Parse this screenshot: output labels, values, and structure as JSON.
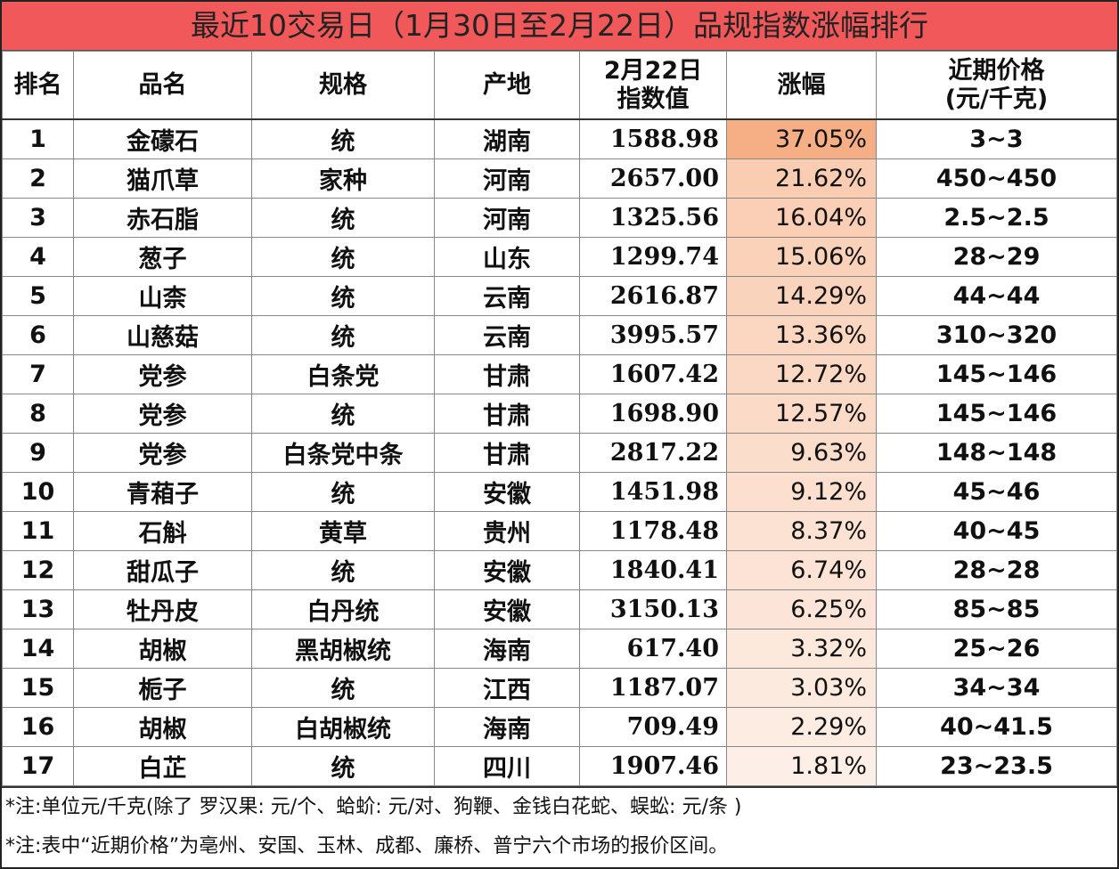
{
  "title": "最近10交易日（1月30日至2月22日）品规指数涨幅排行",
  "table": {
    "header": [
      "排名",
      "品名",
      "规格",
      "产地",
      "2月22日\n指数值",
      "涨幅",
      "近期价格\n(元/千克)"
    ],
    "rows": [
      [
        "1",
        "金礞石",
        "统",
        "湖南",
        "1588.98",
        "37.05%",
        "3~3"
      ],
      [
        "2",
        "猫爪草",
        "家种",
        "河南",
        "2657.00",
        "21.62%",
        "450~450"
      ],
      [
        "3",
        "赤石脂",
        "统",
        "河南",
        "1325.56",
        "16.04%",
        "2.5~2.5"
      ],
      [
        "4",
        "葱子",
        "统",
        "山东",
        "1299.74",
        "15.06%",
        "28~29"
      ],
      [
        "5",
        "山柰",
        "统",
        "云南",
        "2616.87",
        "14.29%",
        "44~44"
      ],
      [
        "6",
        "山慈菇",
        "统",
        "云南",
        "3995.57",
        "13.36%",
        "310~320"
      ],
      [
        "7",
        "党参",
        "白条党",
        "甘肃",
        "1607.42",
        "12.72%",
        "145~146"
      ],
      [
        "8",
        "党参",
        "统",
        "甘肃",
        "1698.90",
        "12.57%",
        "145~146"
      ],
      [
        "9",
        "党参",
        "白条党中条",
        "甘肃",
        "2817.22",
        "9.63%",
        "148~148"
      ],
      [
        "10",
        "青葙子",
        "统",
        "安徽",
        "1451.98",
        "9.12%",
        "45~46"
      ],
      [
        "11",
        "石斛",
        "黄草",
        "贵州",
        "1178.48",
        "8.37%",
        "40~45"
      ],
      [
        "12",
        "甜瓜子",
        "统",
        "安徽",
        "1840.41",
        "6.74%",
        "28~28"
      ],
      [
        "13",
        "牡丹皮",
        "白丹统",
        "安徽",
        "3150.13",
        "6.25%",
        "85~85"
      ],
      [
        "14",
        "胡椒",
        "黑胡椒统",
        "海南",
        "617.40",
        "3.32%",
        "25~26"
      ],
      [
        "15",
        "栀子",
        "统",
        "江西",
        "1187.07",
        "3.03%",
        "34~34"
      ],
      [
        "16",
        "胡椒",
        "白胡椒统",
        "海南",
        "709.49",
        "2.29%",
        "40~41.5"
      ],
      [
        "17",
        "白芷",
        "统",
        "四川",
        "1907.46",
        "1.81%",
        "23~23.5"
      ]
    ]
  },
  "notes": [
    "*注:单位元/千克(除了 罗汉果: 元/个、蛤蚧: 元/对、狗鞭、金钱白花蛇、蜈蚣: 元/条 )",
    "*注:表中“近期价格”为亳州、安国、玉林、成都、廉桥、普宁六个市场的报价区间。"
  ]
}
